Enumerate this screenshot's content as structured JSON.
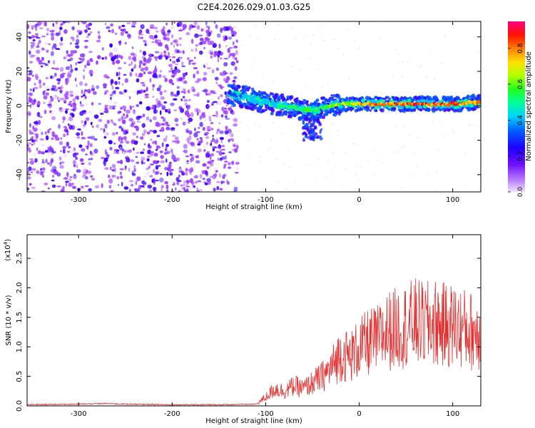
{
  "figure_title": "C2E4.2026.029.01.03.G25",
  "chart_data": [
    {
      "type": "heatmap",
      "title": "C2E4.2026.029.01.03.G25",
      "xlabel": "Height of straight line (km)",
      "ylabel": "Frequency (Hz)",
      "xlim": [
        -355,
        130
      ],
      "ylim": [
        -50,
        49
      ],
      "xticks": [
        -300,
        -200,
        -100,
        0,
        100
      ],
      "xtick_labels": [
        "-300",
        "-200",
        "-100",
        "0",
        "100"
      ],
      "yticks": [
        -40,
        -20,
        0,
        20,
        40
      ],
      "ytick_labels": [
        "-40",
        "-20",
        "0",
        "20",
        "40"
      ],
      "colorbar": {
        "label": "Normalized spectral amplitude",
        "range": [
          0,
          0.95
        ],
        "ticks": [
          0.0,
          0.2,
          0.4,
          0.6,
          0.8
        ],
        "tick_labels": [
          "0.0",
          "0.2",
          "0.4",
          "0.6",
          "0.8"
        ],
        "colors": [
          "#f2e0ff",
          "#9f40ff",
          "#3c00ff",
          "#0050ff",
          "#00c8ff",
          "#00ff90",
          "#40ff00",
          "#d0ff00",
          "#ffd000",
          "#ff6000",
          "#ff0000",
          "#ff0080"
        ]
      },
      "noise_region_x": [
        -355,
        -130
      ],
      "noise_region_amplitude": 0.12,
      "signal_track": [
        {
          "x": -140,
          "freq": 7,
          "amp": 0.25
        },
        {
          "x": -130,
          "freq": 6,
          "amp": 0.35
        },
        {
          "x": -120,
          "freq": 5,
          "amp": 0.4
        },
        {
          "x": -110,
          "freq": 3,
          "amp": 0.42
        },
        {
          "x": -100,
          "freq": 2,
          "amp": 0.45
        },
        {
          "x": -90,
          "freq": 1,
          "amp": 0.45
        },
        {
          "x": -80,
          "freq": 0,
          "amp": 0.5
        },
        {
          "x": -70,
          "freq": -1,
          "amp": 0.5
        },
        {
          "x": -60,
          "freq": -2,
          "amp": 0.5
        },
        {
          "x": -50,
          "freq": -3,
          "amp": 0.5
        },
        {
          "x": -40,
          "freq": -1,
          "amp": 0.55
        },
        {
          "x": -30,
          "freq": 0,
          "amp": 0.6
        },
        {
          "x": -20,
          "freq": 1,
          "amp": 0.65
        },
        {
          "x": -10,
          "freq": 1,
          "amp": 0.7
        },
        {
          "x": 0,
          "freq": 1,
          "amp": 0.75
        },
        {
          "x": 10,
          "freq": 1,
          "amp": 0.8
        },
        {
          "x": 20,
          "freq": 1,
          "amp": 0.85
        },
        {
          "x": 30,
          "freq": 1,
          "amp": 0.9
        },
        {
          "x": 40,
          "freq": 1,
          "amp": 0.9
        },
        {
          "x": 50,
          "freq": 1,
          "amp": 0.92
        },
        {
          "x": 60,
          "freq": 1,
          "amp": 0.92
        },
        {
          "x": 70,
          "freq": 1,
          "amp": 0.9
        },
        {
          "x": 80,
          "freq": 1,
          "amp": 0.9
        },
        {
          "x": 90,
          "freq": 1,
          "amp": 0.88
        },
        {
          "x": 100,
          "freq": 1,
          "amp": 0.88
        },
        {
          "x": 110,
          "freq": 1,
          "amp": 0.85
        },
        {
          "x": 120,
          "freq": 2,
          "amp": 0.85
        },
        {
          "x": 130,
          "freq": 2,
          "amp": 0.82
        }
      ],
      "signal_plume": {
        "x_from": -60,
        "x_to": -40,
        "freq_min": -20
      }
    },
    {
      "type": "line",
      "xlabel": "Height of straight line (km)",
      "ylabel": "SNR (10 * v/v)",
      "y_multiplier": "(x10",
      "y_multiplier_exp": "4",
      "y_multiplier_close": ")",
      "xlim": [
        -355,
        130
      ],
      "ylim": [
        0,
        2.9
      ],
      "xticks": [
        -300,
        -200,
        -100,
        0,
        100
      ],
      "xtick_labels": [
        "-300",
        "-200",
        "-100",
        "0",
        "100"
      ],
      "yticks": [
        0.0,
        0.5,
        1.0,
        1.5,
        2.0,
        2.5
      ],
      "ytick_labels": [
        "0.0",
        "0.5",
        "1.0",
        "1.5",
        "2.0",
        "2.5"
      ],
      "line_color": "#e53030",
      "series": [
        {
          "name": "SNR",
          "x": [
            -355,
            -300,
            -270,
            -250,
            -200,
            -150,
            -110,
            -100,
            -90,
            -80,
            -70,
            -60,
            -50,
            -40,
            -30,
            -20,
            -10,
            0,
            10,
            20,
            30,
            40,
            50,
            60,
            70,
            80,
            90,
            100,
            110,
            120,
            130
          ],
          "values": [
            0.02,
            0.03,
            0.04,
            0.03,
            0.02,
            0.02,
            0.03,
            0.15,
            0.3,
            0.25,
            0.35,
            0.3,
            0.4,
            0.5,
            0.65,
            0.9,
            0.85,
            1.0,
            1.1,
            1.15,
            1.3,
            1.35,
            1.4,
            1.45,
            1.4,
            1.45,
            1.4,
            1.4,
            1.35,
            1.3,
            1.3
          ]
        }
      ]
    }
  ]
}
